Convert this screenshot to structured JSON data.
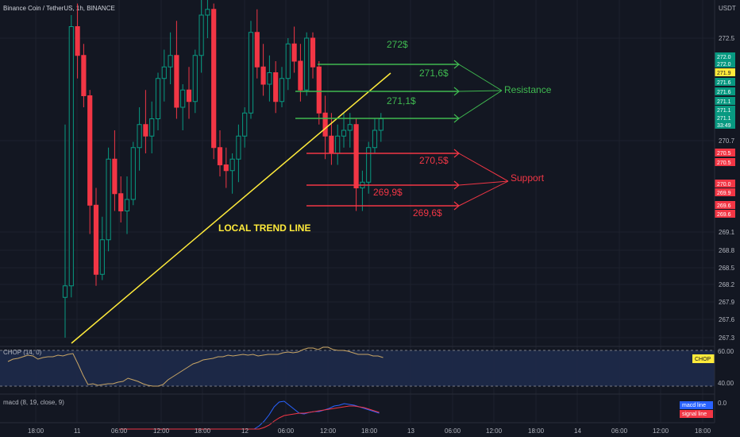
{
  "header": {
    "title": "Binance Coin / TetherUS, 1h, BINANCE",
    "currency": "USDT"
  },
  "price_axis": {
    "ticks": [
      "272.5",
      "270.7",
      "269.1",
      "268.8",
      "268.5",
      "268.2",
      "267.9",
      "267.6",
      "267.3"
    ]
  },
  "price_tags": [
    {
      "label": "272.0",
      "color": "#089981"
    },
    {
      "label": "272.0",
      "color": "#089981"
    },
    {
      "label": "271.9",
      "color": "#ffeb3b"
    },
    {
      "label": "271.6",
      "color": "#089981"
    },
    {
      "label": "271.6",
      "color": "#089981"
    },
    {
      "label": "271.1",
      "color": "#089981"
    },
    {
      "label": "271.1",
      "color": "#089981"
    },
    {
      "label": "271.1",
      "color": "#089981"
    },
    {
      "label": "33:49",
      "color": "#089981"
    },
    {
      "label": "270.5",
      "color": "#f23645"
    },
    {
      "label": "270.5",
      "color": "#f23645"
    },
    {
      "label": "270.0",
      "color": "#f23645"
    },
    {
      "label": "269.9",
      "color": "#f23645"
    },
    {
      "label": "269.6",
      "color": "#f23645"
    },
    {
      "label": "269.6",
      "color": "#f23645"
    }
  ],
  "time_axis": {
    "ticks": [
      "18:00",
      "11",
      "06:00",
      "12:00",
      "18:00",
      "12",
      "06:00",
      "12:00",
      "18:00",
      "13",
      "06:00",
      "12:00",
      "18:00",
      "14",
      "06:00",
      "12:00",
      "18:00"
    ]
  },
  "annotations": {
    "resistance_label": "Resistance",
    "support_label": "Support",
    "trend_label": "LOCAL TREND LINE",
    "levels": [
      {
        "label": "272$",
        "kind": "resistance"
      },
      {
        "label": "271,6$",
        "kind": "resistance"
      },
      {
        "label": "271,1$",
        "kind": "resistance"
      },
      {
        "label": "270,5$",
        "kind": "support"
      },
      {
        "label": "269,9$",
        "kind": "support"
      },
      {
        "label": "269,6$",
        "kind": "support"
      }
    ]
  },
  "chop": {
    "title": "CHOP (14, 0)",
    "tag": "CHOP",
    "ticks": [
      "60.00",
      "40.00"
    ]
  },
  "macd": {
    "title": "macd (8, 19, close, 9)",
    "tick": "0.0",
    "legend": [
      "macd line",
      "signal line"
    ]
  },
  "chart_data": {
    "type": "candlestick",
    "candles": [
      [
        268.0,
        271.0,
        267.3,
        268.2
      ],
      [
        268.2,
        272.9,
        268.0,
        272.7
      ],
      [
        272.7,
        273.1,
        271.8,
        272.2
      ],
      [
        272.2,
        272.4,
        271.3,
        271.5
      ],
      [
        271.5,
        271.6,
        269.1,
        269.6
      ],
      [
        269.6,
        269.9,
        268.2,
        268.4
      ],
      [
        268.4,
        269.4,
        268.3,
        269.0
      ],
      [
        269.0,
        270.6,
        268.8,
        270.4
      ],
      [
        270.4,
        270.9,
        269.5,
        269.8
      ],
      [
        269.8,
        270.1,
        269.3,
        269.5
      ],
      [
        269.5,
        270.1,
        269.1,
        269.7
      ],
      [
        269.7,
        270.7,
        269.6,
        270.6
      ],
      [
        270.6,
        271.3,
        270.2,
        271.0
      ],
      [
        271.0,
        271.6,
        270.5,
        270.8
      ],
      [
        270.8,
        271.4,
        270.5,
        271.1
      ],
      [
        271.1,
        271.9,
        270.9,
        271.8
      ],
      [
        271.8,
        272.3,
        271.4,
        272.0
      ],
      [
        272.0,
        272.6,
        271.7,
        272.2
      ],
      [
        272.2,
        272.8,
        271.1,
        271.3
      ],
      [
        271.3,
        271.7,
        270.9,
        271.6
      ],
      [
        271.6,
        272.0,
        271.1,
        271.4
      ],
      [
        271.4,
        272.3,
        271.2,
        272.2
      ],
      [
        272.2,
        273.2,
        271.9,
        272.9
      ],
      [
        272.9,
        273.3,
        272.5,
        273.0
      ],
      [
        273.0,
        273.1,
        270.4,
        270.6
      ],
      [
        270.6,
        270.9,
        270.1,
        270.3
      ],
      [
        270.3,
        270.6,
        269.9,
        270.2
      ],
      [
        270.2,
        270.5,
        269.8,
        270.4
      ],
      [
        270.4,
        271.0,
        270.0,
        270.8
      ],
      [
        270.8,
        271.3,
        270.6,
        271.2
      ],
      [
        271.2,
        272.8,
        271.1,
        272.6
      ],
      [
        272.6,
        273.0,
        271.8,
        272.0
      ],
      [
        272.0,
        272.4,
        271.5,
        271.7
      ],
      [
        271.7,
        272.2,
        271.4,
        271.9
      ],
      [
        271.9,
        272.1,
        271.2,
        271.4
      ],
      [
        271.4,
        272.0,
        271.3,
        271.8
      ],
      [
        271.8,
        272.5,
        271.6,
        272.4
      ],
      [
        272.4,
        272.7,
        271.9,
        272.1
      ],
      [
        272.1,
        272.4,
        271.4,
        271.6
      ],
      [
        271.6,
        272.6,
        271.5,
        272.5
      ],
      [
        272.5,
        272.6,
        271.8,
        272.0
      ],
      [
        272.0,
        272.1,
        271.0,
        271.2
      ],
      [
        271.2,
        271.5,
        270.4,
        270.8
      ],
      [
        270.8,
        271.2,
        270.3,
        270.5
      ],
      [
        270.5,
        271.0,
        270.3,
        270.8
      ],
      [
        270.8,
        271.2,
        270.6,
        270.9
      ],
      [
        270.9,
        271.2,
        270.6,
        271.0
      ],
      [
        271.0,
        271.1,
        269.5,
        269.9
      ],
      [
        269.9,
        270.2,
        269.5,
        270.0
      ],
      [
        270.0,
        270.7,
        269.8,
        270.6
      ],
      [
        270.6,
        271.1,
        270.5,
        270.9
      ],
      [
        270.9,
        271.2,
        270.7,
        271.1
      ]
    ]
  }
}
